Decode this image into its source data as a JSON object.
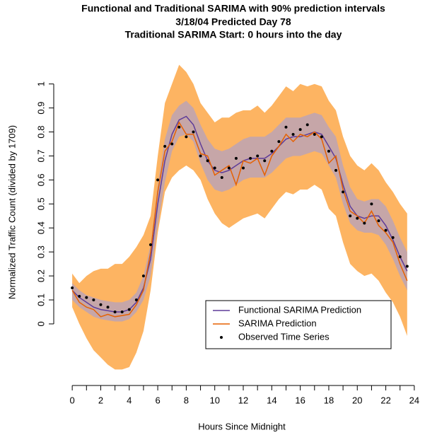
{
  "chart_data": {
    "type": "line",
    "title": [
      "Functional and Traditional SARIMA with 90% prediction intervals",
      "3/18/04 Predicted Day 78",
      "Traditional SARIMA Start: 0 hours into the day"
    ],
    "xlabel": "Hours Since Midnight",
    "ylabel": "Normalized Traffic Count (divided by 1709)",
    "xlim": [
      -0.95,
      24.7
    ],
    "ylim": [
      -0.236,
      1.12
    ],
    "xticks": [
      0,
      2,
      4,
      6,
      8,
      10,
      12,
      14,
      16,
      18,
      20,
      22,
      24
    ],
    "xminor": [
      1,
      3,
      5,
      7,
      9,
      11,
      13,
      15,
      17,
      19,
      21,
      23
    ],
    "yticks": [
      0,
      0.1,
      0.2,
      0.3,
      0.4,
      0.5,
      0.6,
      0.7,
      0.8,
      0.9,
      1
    ],
    "x": [
      0,
      0.5,
      1,
      1.5,
      2,
      2.5,
      3,
      3.5,
      4,
      4.5,
      5,
      5.5,
      6,
      6.5,
      7,
      7.5,
      8,
      8.5,
      9,
      9.5,
      10,
      10.5,
      11,
      11.5,
      12,
      12.5,
      13,
      13.5,
      14,
      14.5,
      15,
      15.5,
      16,
      16.5,
      17,
      17.5,
      18,
      18.5,
      19,
      19.5,
      20,
      20.5,
      21,
      21.5,
      22,
      22.5,
      23,
      23.5
    ],
    "intervals": [
      {
        "color": "#fdb462",
        "lower": [
          0.07,
          0.0,
          -0.06,
          -0.11,
          -0.14,
          -0.17,
          -0.19,
          -0.19,
          -0.18,
          -0.12,
          -0.03,
          0.14,
          0.38,
          0.55,
          0.61,
          0.64,
          0.66,
          0.64,
          0.6,
          0.52,
          0.46,
          0.42,
          0.4,
          0.42,
          0.44,
          0.45,
          0.46,
          0.44,
          0.48,
          0.52,
          0.55,
          0.54,
          0.56,
          0.56,
          0.58,
          0.56,
          0.48,
          0.45,
          0.34,
          0.25,
          0.22,
          0.2,
          0.21,
          0.18,
          0.13,
          0.09,
          0.03,
          -0.05
        ],
        "upper": [
          0.21,
          0.17,
          0.2,
          0.22,
          0.23,
          0.23,
          0.25,
          0.25,
          0.28,
          0.32,
          0.37,
          0.45,
          0.7,
          0.92,
          1.0,
          1.08,
          1.05,
          1.0,
          0.92,
          0.88,
          0.84,
          0.86,
          0.86,
          0.88,
          0.89,
          0.89,
          0.91,
          0.88,
          0.91,
          0.95,
          0.99,
          0.97,
          1.0,
          0.99,
          1.0,
          0.99,
          0.93,
          0.89,
          0.78,
          0.7,
          0.66,
          0.64,
          0.67,
          0.64,
          0.59,
          0.55,
          0.5,
          0.46
        ]
      },
      {
        "color": "#c6a6a8",
        "lower": [
          0.1,
          0.07,
          0.05,
          0.03,
          0.02,
          0.015,
          0.01,
          0.01,
          0.02,
          0.05,
          0.1,
          0.2,
          0.41,
          0.59,
          0.72,
          0.78,
          0.79,
          0.76,
          0.67,
          0.6,
          0.56,
          0.55,
          0.56,
          0.58,
          0.6,
          0.61,
          0.61,
          0.61,
          0.63,
          0.66,
          0.69,
          0.7,
          0.7,
          0.71,
          0.72,
          0.71,
          0.66,
          0.61,
          0.5,
          0.42,
          0.39,
          0.38,
          0.38,
          0.37,
          0.33,
          0.27,
          0.2,
          0.14
        ],
        "upper": [
          0.17,
          0.14,
          0.12,
          0.11,
          0.1,
          0.095,
          0.09,
          0.09,
          0.1,
          0.13,
          0.2,
          0.33,
          0.58,
          0.77,
          0.87,
          0.91,
          0.93,
          0.9,
          0.83,
          0.77,
          0.73,
          0.72,
          0.73,
          0.75,
          0.77,
          0.78,
          0.78,
          0.78,
          0.8,
          0.83,
          0.86,
          0.86,
          0.86,
          0.87,
          0.88,
          0.87,
          0.82,
          0.78,
          0.66,
          0.57,
          0.52,
          0.51,
          0.52,
          0.52,
          0.49,
          0.43,
          0.36,
          0.3
        ]
      }
    ],
    "series": [
      {
        "name": "Functional SARIMA Prediction",
        "color": "#5e3c99",
        "marker": "line",
        "values": [
          0.14,
          0.11,
          0.09,
          0.07,
          0.06,
          0.055,
          0.05,
          0.05,
          0.06,
          0.09,
          0.15,
          0.27,
          0.5,
          0.68,
          0.79,
          0.85,
          0.865,
          0.83,
          0.75,
          0.68,
          0.64,
          0.63,
          0.64,
          0.66,
          0.68,
          0.69,
          0.69,
          0.69,
          0.71,
          0.74,
          0.77,
          0.78,
          0.78,
          0.79,
          0.8,
          0.79,
          0.74,
          0.69,
          0.58,
          0.49,
          0.45,
          0.44,
          0.45,
          0.45,
          0.41,
          0.35,
          0.28,
          0.22
        ]
      },
      {
        "name": "SARIMA Prediction",
        "color": "#e66101",
        "marker": "line",
        "values": [
          0.14,
          0.09,
          0.07,
          0.06,
          0.03,
          0.04,
          0.03,
          0.035,
          0.04,
          0.08,
          0.14,
          0.3,
          0.55,
          0.72,
          0.76,
          0.84,
          0.79,
          0.79,
          0.71,
          0.7,
          0.62,
          0.64,
          0.66,
          0.58,
          0.68,
          0.67,
          0.69,
          0.62,
          0.7,
          0.74,
          0.79,
          0.76,
          0.79,
          0.78,
          0.8,
          0.77,
          0.67,
          0.7,
          0.56,
          0.47,
          0.45,
          0.42,
          0.47,
          0.41,
          0.38,
          0.34,
          0.25,
          0.18
        ]
      },
      {
        "name": "Observed Time Series",
        "color": "#000000",
        "marker": "point",
        "values": [
          0.15,
          0.115,
          0.11,
          0.1,
          0.08,
          0.07,
          0.05,
          0.05,
          0.06,
          0.1,
          0.2,
          0.33,
          0.6,
          0.74,
          0.75,
          0.82,
          0.78,
          0.8,
          0.7,
          0.68,
          0.65,
          0.61,
          0.65,
          0.69,
          0.65,
          0.69,
          0.7,
          0.68,
          0.72,
          0.76,
          0.82,
          0.79,
          0.81,
          0.83,
          0.79,
          0.78,
          0.72,
          0.64,
          0.55,
          0.45,
          0.44,
          0.42,
          0.5,
          0.43,
          0.39,
          0.36,
          0.28,
          0.24
        ]
      }
    ]
  }
}
